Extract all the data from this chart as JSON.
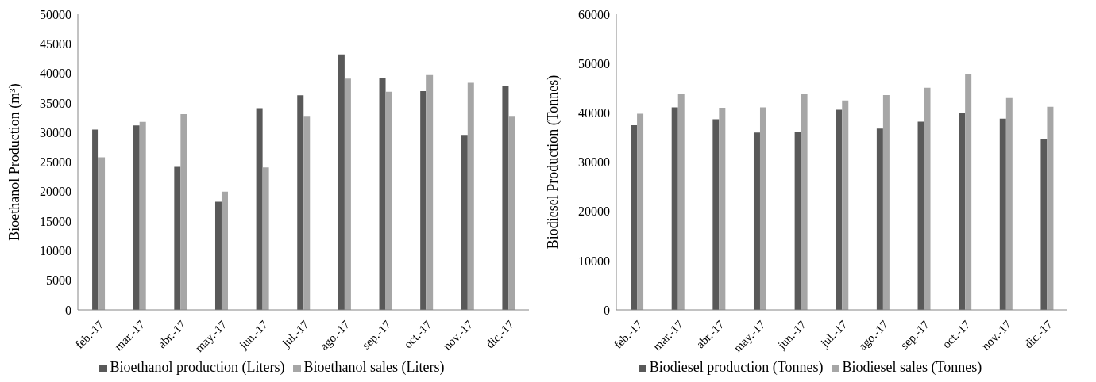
{
  "chart_data": [
    {
      "type": "bar",
      "ylabel": "Bioethanol Production (m³)",
      "categories": [
        "feb.-17",
        "mar.-17",
        "abr.-17",
        "may.-17",
        "jun.-17",
        "jul.-17",
        "ago.-17",
        "sep.-17",
        "oct.-17",
        "nov.-17",
        "dic.-17"
      ],
      "series": [
        {
          "name": "Bioethanol production (Liters)",
          "color": "#595959",
          "values": [
            30500,
            31200,
            24200,
            18300,
            34100,
            36300,
            43200,
            39200,
            37000,
            29600,
            37900
          ]
        },
        {
          "name": "Bioethanol sales (Liters)",
          "color": "#a6a6a6",
          "values": [
            25800,
            31800,
            33100,
            20000,
            24100,
            32800,
            39100,
            36900,
            39700,
            38400,
            32800
          ]
        }
      ],
      "ylim": [
        0,
        50000
      ],
      "yticks": [
        0,
        5000,
        10000,
        15000,
        20000,
        25000,
        30000,
        35000,
        40000,
        45000,
        50000
      ],
      "grid": false,
      "legend": "bottom"
    },
    {
      "type": "bar",
      "ylabel": "Biodiesel Production (Tonnes)",
      "categories": [
        "feb.-17",
        "mar.-17",
        "abr.-17",
        "may.-17",
        "jun.-17",
        "jul.-17",
        "ago.-17",
        "sep.-17",
        "oct.-17",
        "nov.-17",
        "dic.-17"
      ],
      "series": [
        {
          "name": "Biodiesel production (Tonnes)",
          "color": "#595959",
          "values": [
            37500,
            41100,
            38700,
            36000,
            36100,
            40600,
            36800,
            38200,
            39900,
            38800,
            34700
          ]
        },
        {
          "name": "Biodiesel sales (Tonnes)",
          "color": "#a6a6a6",
          "values": [
            39800,
            43800,
            41000,
            41100,
            43900,
            42500,
            43600,
            45100,
            47900,
            43000,
            41200
          ]
        }
      ],
      "ylim": [
        0,
        60000
      ],
      "yticks": [
        0,
        10000,
        20000,
        30000,
        40000,
        50000,
        60000
      ],
      "grid": false,
      "legend": "bottom"
    }
  ]
}
